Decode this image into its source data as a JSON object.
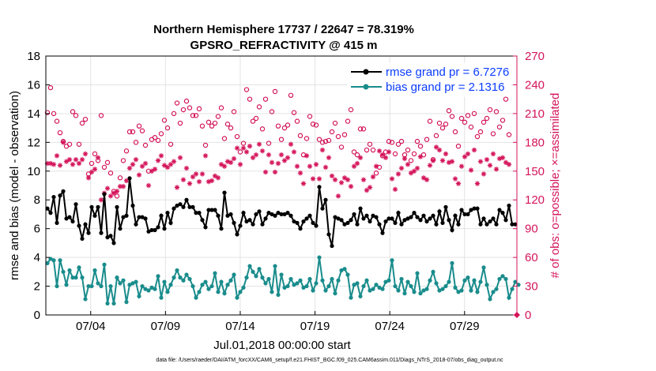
{
  "chart_data": {
    "type": "line",
    "title_line1": "Northern Hemisphere 17737 / 22647 = 78.319%",
    "title_line2": "GPSRO_REFRACTIVITY @ 415 m",
    "xlabel": "Jul.01,2018 00:00:00 start",
    "ylabel_left": "rmse and bias (model - observation)",
    "ylabel_right": "# of obs: o=possible; ×=assimilated",
    "footer": "data file: /Users/raeder/DAI/ATM_forcXX/CAM6_setup/f.e21.FHIST_BGC.f09_025.CAM6assim.011/Diags_NTrS_2018-07/obs_diag_output.nc",
    "xlim": [
      0,
      31.5
    ],
    "ylim_left": [
      0,
      18
    ],
    "ylim_right": [
      0,
      270
    ],
    "x_tick_values": [
      3,
      8,
      13,
      18,
      23,
      28
    ],
    "x_tick_labels": [
      "07/04",
      "07/09",
      "07/14",
      "07/19",
      "07/24",
      "07/29"
    ],
    "y_left_ticks": [
      "0",
      "2",
      "4",
      "6",
      "8",
      "10",
      "12",
      "14",
      "16",
      "18"
    ],
    "y_right_ticks": [
      "0",
      "30",
      "60",
      "90",
      "120",
      "150",
      "180",
      "210",
      "240",
      "270"
    ],
    "grid": true,
    "legend_position": "top-right",
    "series": [
      {
        "name": "rmse grand pr = 6.7276",
        "color": "#000000",
        "axis": "left",
        "values": [
          7.4,
          7.1,
          8.2,
          6.4,
          8.3,
          8.6,
          6.7,
          6.8,
          6.5,
          7.7,
          6.2,
          5.3,
          6.3,
          5.7,
          7.5,
          6.9,
          7.5,
          5.7,
          8.4,
          5.4,
          5.5,
          5.0,
          7.5,
          6.0,
          6.8,
          6.9,
          9.5,
          7.6,
          6.3,
          6.8,
          6.8,
          6.7,
          5.8,
          5.9,
          5.9,
          6.1,
          6.9,
          6.0,
          7.1,
          6.4,
          7.4,
          7.6,
          7.7,
          7.5,
          8.0,
          7.5,
          7.5,
          7.1,
          7.1,
          6.6,
          6.1,
          7.3,
          7.3,
          7.3,
          6.9,
          6.0,
          8.5,
          6.9,
          7.0,
          6.4,
          5.6,
          6.2,
          7.1,
          6.5,
          6.6,
          6.3,
          7.0,
          7.2,
          6.3,
          6.7,
          7.1,
          7.0,
          6.9,
          7.1,
          7.0,
          7.0,
          7.1,
          6.9,
          6.5,
          6.4,
          6.0,
          6.5,
          6.7,
          6.9,
          6.4,
          6.2,
          8.9,
          7.4,
          8.0,
          5.6,
          4.8,
          6.8,
          6.7,
          6.6,
          6.3,
          6.4,
          6.6,
          7.0,
          6.3,
          7.4,
          6.7,
          6.9,
          6.5,
          6.9,
          6.8,
          6.3,
          5.7,
          6.5,
          6.7,
          6.7,
          6.4,
          7.1,
          6.3,
          6.6,
          6.7,
          6.8,
          7.1,
          6.8,
          6.6,
          6.9,
          6.5,
          6.7,
          6.9,
          6.3,
          7.2,
          6.4,
          7.5,
          6.6,
          5.9,
          6.9,
          6.3,
          7.3,
          7.0,
          7.0,
          7.3,
          7.4,
          7.4,
          6.3,
          6.7,
          6.3,
          6.5,
          6.7,
          6.3,
          7.3,
          7.1,
          6.6,
          7.6,
          6.3,
          6.3
        ]
      },
      {
        "name": "bias grand pr = 2.1316",
        "color": "#1a8c8c",
        "axis": "left",
        "values": [
          3.6,
          3.9,
          3.8,
          2.0,
          3.8,
          3.0,
          2.1,
          3.1,
          2.6,
          2.6,
          3.3,
          2.6,
          1.1,
          2.0,
          2.0,
          3.1,
          2.2,
          2.0,
          3.5,
          0.8,
          2.0,
          0.8,
          2.6,
          2.2,
          2.4,
          0.9,
          2.1,
          2.2,
          2.3,
          1.3,
          2.0,
          1.8,
          1.7,
          1.9,
          1.8,
          2.7,
          1.2,
          2.3,
          1.6,
          2.1,
          2.6,
          3.1,
          2.6,
          2.4,
          2.8,
          2.5,
          2.0,
          1.2,
          1.6,
          2.1,
          2.3,
          1.8,
          2.0,
          2.9,
          1.6,
          2.3,
          1.5,
          2.1,
          2.4,
          2.8,
          1.2,
          1.6,
          1.9,
          2.6,
          3.4,
          3.0,
          2.7,
          3.2,
          2.6,
          2.2,
          2.5,
          1.6,
          3.4,
          1.4,
          2.8,
          1.9,
          2.0,
          2.5,
          2.1,
          2.2,
          2.4,
          1.9,
          2.0,
          2.5,
          1.7,
          2.2,
          4.0,
          2.4,
          1.7,
          2.0,
          2.5,
          1.5,
          2.4,
          3.1,
          3.2,
          2.8,
          1.2,
          2.1,
          2.2,
          1.3,
          2.0,
          2.4,
          1.7,
          1.8,
          2.1,
          1.9,
          1.8,
          2.3,
          2.4,
          3.8,
          2.0,
          1.7,
          2.5,
          1.5,
          2.3,
          2.0,
          1.6,
          2.9,
          1.5,
          1.7,
          1.8,
          2.4,
          3.0,
          2.2,
          1.7,
          1.8,
          2.0,
          2.3,
          3.6,
          1.9,
          1.6,
          1.7,
          2.4,
          2.6,
          1.7,
          2.4,
          1.6,
          2.3,
          3.3,
          2.1,
          1.1,
          1.6,
          1.8,
          2.5,
          2.7,
          2.5,
          1.2,
          1.8,
          2.3,
          2.1
        ]
      },
      {
        "name": "possible",
        "color": "#d4145a",
        "axis": "right",
        "marker": "circle",
        "values": [
          211,
          237,
          210,
          202,
          190,
          181,
          176,
          178,
          212,
          208,
          178,
          200,
          204,
          147,
          158,
          168,
          161,
          208,
          154,
          159,
          148,
          129,
          124,
          143,
          161,
          171,
          191,
          191,
          180,
          197,
          192,
          177,
          150,
          183,
          185,
          182,
          189,
          203,
          195,
          178,
          210,
          221,
          200,
          214,
          223,
          216,
          208,
          208,
          215,
          197,
          177,
          201,
          197,
          200,
          207,
          216,
          184,
          199,
          195,
          212,
          186,
          170,
          179,
          235,
          225,
          202,
          205,
          217,
          194,
          225,
          179,
          212,
          233,
          197,
          183,
          195,
          198,
          229,
          211,
          202,
          187,
          167,
          184,
          207,
          199,
          198,
          183,
          180,
          181,
          182,
          191,
          200,
          186,
          175,
          188,
          202,
          214,
          170,
          167,
          194,
          194,
          172,
          178,
          172,
          148,
          154,
          166,
          170,
          181,
          180,
          168,
          178,
          181,
          167,
          172,
          161,
          168,
          181,
          176,
          167,
          183,
          202,
          162,
          187,
          200,
          195,
          199,
          213,
          207,
          191,
          176,
          205,
          201,
          208,
          196,
          210,
          186,
          191,
          201,
          205,
          214,
          189,
          212,
          196,
          203,
          225,
          188
        ]
      },
      {
        "name": "assimilated",
        "color": "#d4145a",
        "axis": "right",
        "marker": "asterisk",
        "values": [
          158,
          158,
          157,
          166,
          156,
          180,
          160,
          162,
          157,
          162,
          158,
          162,
          168,
          143,
          149,
          152,
          164,
          120,
          127,
          132,
          124,
          127,
          129,
          134,
          134,
          140,
          153,
          157,
          162,
          146,
          155,
          158,
          135,
          150,
          152,
          161,
          166,
          156,
          154,
          157,
          160,
          133,
          164,
          141,
          153,
          137,
          144,
          147,
          139,
          147,
          166,
          139,
          140,
          145,
          143,
          157,
          155,
          160,
          159,
          163,
          174,
          157,
          174,
          170,
          176,
          164,
          167,
          178,
          171,
          149,
          167,
          159,
          149,
          158,
          167,
          161,
          164,
          178,
          170,
          155,
          148,
          137,
          166,
          155,
          142,
          157,
          142,
          172,
          154,
          164,
          145,
          141,
          124,
          138,
          143,
          141,
          134,
          155,
          158,
          164,
          141,
          130,
          133,
          144,
          155,
          171,
          167,
          164,
          170,
          142,
          131,
          147,
          153,
          163,
          157,
          148,
          150,
          153,
          165,
          143,
          141,
          156,
          161,
          175,
          172,
          161,
          168,
          159,
          160,
          142,
          137,
          155,
          165,
          168,
          151,
          172,
          137,
          160,
          147,
          162,
          156,
          168,
          152,
          163,
          164,
          159,
          157
        ]
      }
    ]
  }
}
